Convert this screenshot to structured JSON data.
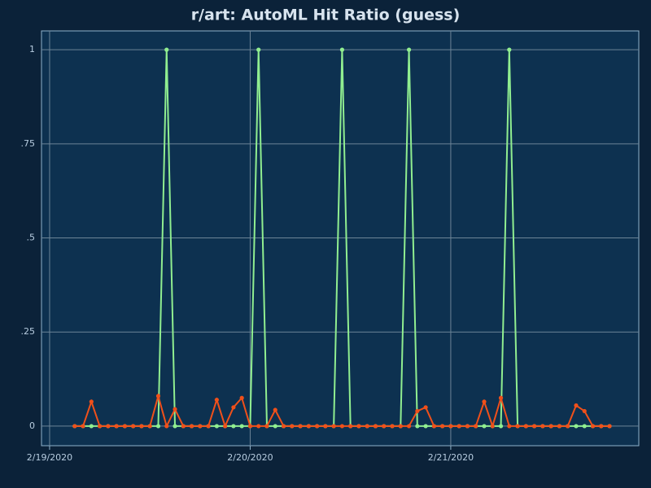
{
  "chart_data": {
    "type": "line",
    "title": "r/art: AutoML Hit Ratio (guess)",
    "x": [
      3,
      4,
      5,
      6,
      7,
      8,
      9,
      10,
      11,
      12,
      13,
      14,
      15,
      16,
      17,
      18,
      19,
      20,
      21,
      22,
      23,
      24,
      25,
      26,
      27,
      28,
      29,
      30,
      31,
      32,
      33,
      34,
      35,
      36,
      37,
      38,
      39,
      40,
      41,
      42,
      43,
      44,
      45,
      46,
      47,
      48,
      49,
      50,
      51,
      52,
      53,
      54,
      55,
      56,
      57,
      58,
      59,
      60,
      61,
      62,
      63,
      64,
      65,
      66,
      67
    ],
    "series": [
      {
        "color": "#90ee90",
        "values": [
          0,
          0,
          0,
          0,
          0,
          0,
          0,
          0,
          0,
          0,
          0,
          1,
          0,
          0,
          0,
          0,
          0,
          0,
          0,
          0,
          0,
          0,
          1,
          0,
          0,
          0,
          0,
          0,
          0,
          0,
          0,
          0,
          1,
          0,
          0,
          0,
          0,
          0,
          0,
          0,
          1,
          0,
          0,
          0,
          0,
          0,
          0,
          0,
          0,
          0,
          0,
          0,
          1,
          0,
          0,
          0,
          0,
          0,
          0,
          0,
          0,
          0,
          0,
          0,
          0
        ]
      },
      {
        "color": "#f0501a",
        "values": [
          0,
          0,
          0.065,
          0,
          0,
          0,
          0,
          0,
          0,
          0,
          0.08,
          0,
          0.045,
          0,
          0,
          0,
          0,
          0.07,
          0,
          0.05,
          0.075,
          0,
          0,
          0,
          0.043,
          0,
          0,
          0,
          0,
          0,
          0,
          0,
          0,
          0,
          0,
          0,
          0,
          0,
          0,
          0,
          0,
          0.04,
          0.05,
          0,
          0,
          0,
          0,
          0,
          0,
          0.065,
          0,
          0.075,
          0,
          0,
          0,
          0,
          0,
          0,
          0,
          0,
          0.055,
          0.04,
          0,
          0,
          0
        ]
      }
    ],
    "xlim": [
      -0.97,
      70.5
    ],
    "xticks": [
      {
        "value": 0,
        "label": "2/19/2020"
      },
      {
        "value": 24,
        "label": "2/20/2020"
      },
      {
        "value": 48,
        "label": "2/21/2020"
      }
    ],
    "ylim": [
      -0.052,
      1.05
    ],
    "yticks": [
      0,
      {
        "value": 0.25,
        "label": ".25"
      },
      {
        "value": 0.5,
        "label": ".5"
      },
      {
        "value": 0.75,
        "label": ".75"
      },
      1
    ],
    "grid": true
  }
}
